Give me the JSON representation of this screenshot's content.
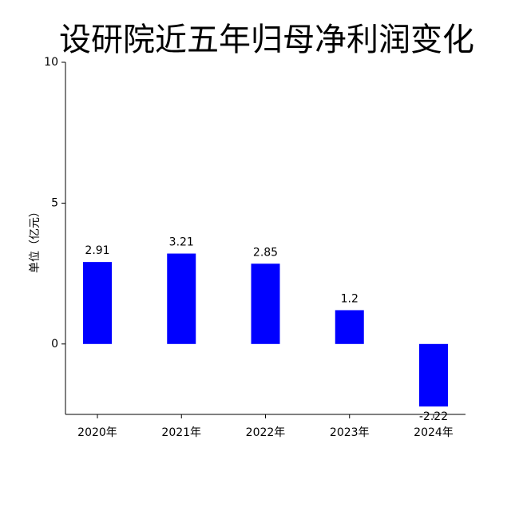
{
  "chart_data": {
    "type": "bar",
    "title": "设研院近五年归母净利润变化",
    "y_label": "单位（亿元）",
    "categories": [
      "2020年",
      "2021年",
      "2022年",
      "2023年",
      "2024年"
    ],
    "values": [
      2.91,
      3.21,
      2.85,
      1.2,
      -2.22
    ],
    "color": "#0000ff",
    "ylim": [
      -2.5,
      10
    ],
    "yticks": [
      0,
      5,
      10
    ],
    "grid": false
  }
}
